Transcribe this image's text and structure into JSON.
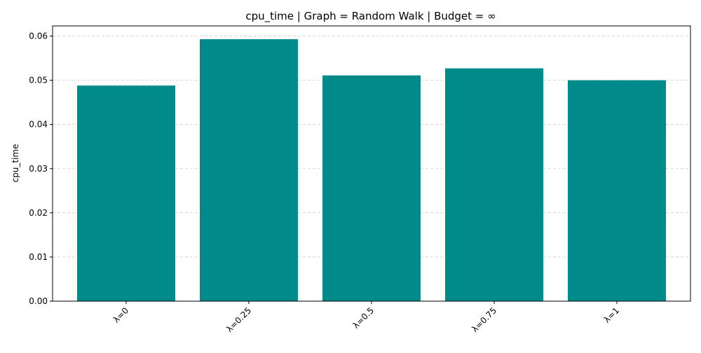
{
  "chart_data": {
    "type": "bar",
    "title": "cpu_time | Graph = Random Walk | Budget = ∞",
    "xlabel": "",
    "ylabel": "cpu_time",
    "categories": [
      "λ=0",
      "λ=0.25",
      "λ=0.5",
      "λ=0.75",
      "λ=1"
    ],
    "values": [
      0.0488,
      0.0593,
      0.0511,
      0.0527,
      0.05
    ],
    "ylim": [
      0,
      0.0623
    ],
    "yticks": [
      "0.00",
      "0.01",
      "0.02",
      "0.03",
      "0.04",
      "0.05",
      "0.06"
    ],
    "ytick_values": [
      0,
      0.01,
      0.02,
      0.03,
      0.04,
      0.05,
      0.06
    ],
    "grid": "y-axis dashed",
    "bar_color": "#008b8b",
    "grid_color": "#cccccc",
    "x_tick_rotation": "45 degrees"
  }
}
